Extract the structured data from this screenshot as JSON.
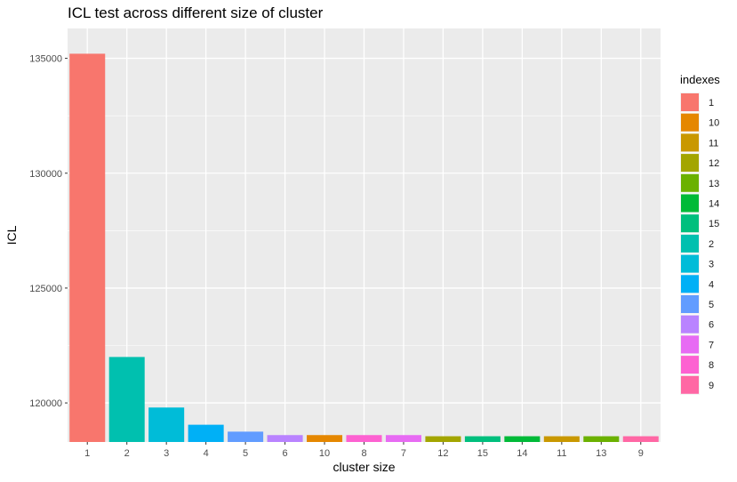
{
  "chart_data": {
    "type": "bar",
    "title": "ICL test across different size of cluster",
    "xlabel": "cluster size",
    "ylabel": "ICL",
    "categories": [
      "1",
      "2",
      "3",
      "4",
      "5",
      "6",
      "10",
      "8",
      "7",
      "12",
      "15",
      "14",
      "11",
      "13",
      "9"
    ],
    "values": [
      135200,
      122000,
      119800,
      119050,
      118750,
      118600,
      118600,
      118600,
      118600,
      118550,
      118550,
      118550,
      118550,
      118550,
      118550
    ],
    "ylim": [
      118300,
      136300
    ],
    "yticks": [
      120000,
      125000,
      130000,
      135000
    ],
    "yticklabels": [
      "120000",
      "125000",
      "130000",
      "135000"
    ],
    "grid": true,
    "legend": {
      "title": "indexes",
      "placement": "right",
      "entries": [
        "1",
        "10",
        "11",
        "12",
        "13",
        "14",
        "15",
        "2",
        "3",
        "4",
        "5",
        "6",
        "7",
        "8",
        "9"
      ],
      "colors": {
        "1": "#F8766D",
        "10": "#E58700",
        "11": "#C99800",
        "12": "#A3A500",
        "13": "#6BB100",
        "14": "#00BA38",
        "15": "#00BF7D",
        "2": "#00C0AF",
        "3": "#00BCD8",
        "4": "#00B0F6",
        "5": "#619CFF",
        "6": "#B983FF",
        "7": "#E76BF3",
        "8": "#FD61D1",
        "9": "#FF67A4"
      }
    },
    "panel_background": "#EBEBEB",
    "grid_color": "#FFFFFF"
  }
}
